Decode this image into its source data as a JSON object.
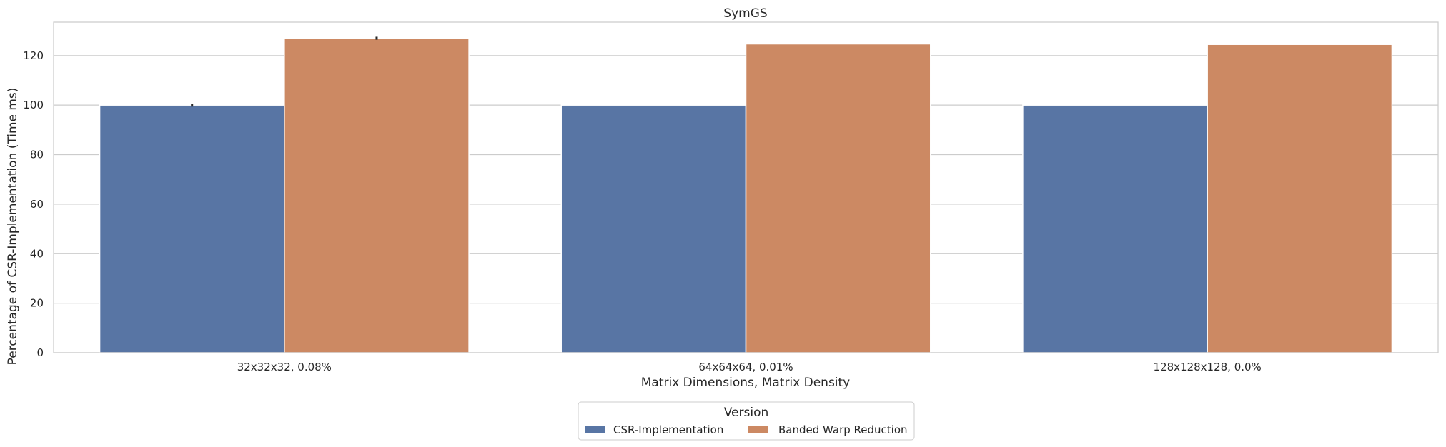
{
  "chart_data": {
    "type": "bar",
    "title": "SymGS",
    "xlabel": "Matrix Dimensions, Matrix Density",
    "ylabel": "Percentage of CSR-Implementation (Time ms)",
    "categories": [
      "32x32x32, 0.08%",
      "64x64x64, 0.01%",
      "128x128x128, 0.0%"
    ],
    "series": [
      {
        "name": "CSR-Implementation",
        "values": [
          100,
          100,
          100
        ],
        "error": [
          0.6,
          0,
          0
        ],
        "color": "#5875a4"
      },
      {
        "name": "Banded Warp Reduction",
        "values": [
          127,
          124.7,
          124.5
        ],
        "error": [
          0.6,
          0,
          0
        ],
        "color": "#cc8963"
      }
    ],
    "ylim": [
      0,
      133.5
    ],
    "yticks": [
      0,
      20,
      40,
      60,
      80,
      100,
      120
    ],
    "grid": true,
    "legend": {
      "title": "Version",
      "placement": "bottom-center"
    }
  }
}
